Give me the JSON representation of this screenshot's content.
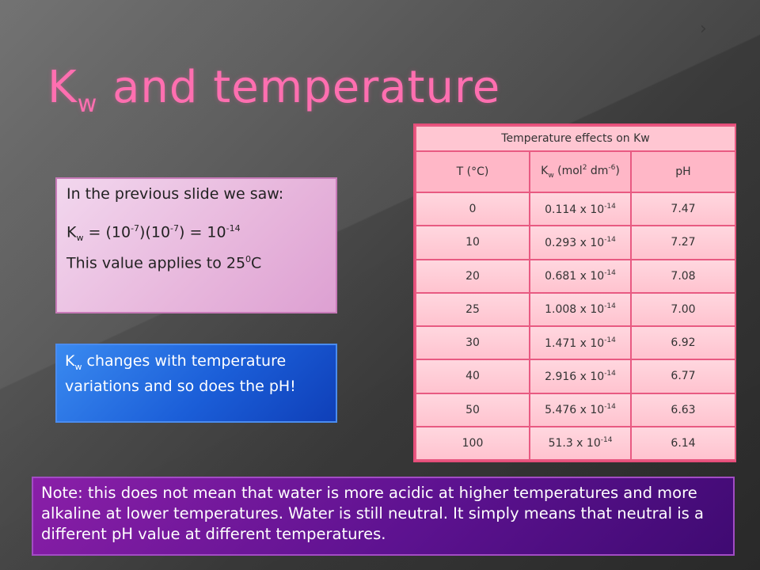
{
  "title": {
    "main": "K",
    "sub": "w",
    "rest": " and temperature"
  },
  "info_box": {
    "line1": "In the previous slide we saw:",
    "eq_k": "K",
    "eq_sub": "w",
    "eq_a": " = (10",
    "eq_exp1": "-7",
    "eq_b": ")(10",
    "eq_exp2": "-7",
    "eq_c": ")  = 10",
    "eq_exp3": "-14",
    "line3_a": "This value applies to 25",
    "line3_sup": "0",
    "line3_b": "C"
  },
  "blue_box": {
    "k": " K",
    "sub": "w",
    "text": " changes with temperature variations and so does the pH!"
  },
  "table": {
    "caption": "Temperature effects on Kw",
    "headers": {
      "t": "T (°C)",
      "kw_main": "K",
      "kw_sub": "w",
      "kw_rest": " (mol",
      "kw_sup1": "2",
      "kw_rest2": " dm",
      "kw_sup2": "-6",
      "kw_end": ")",
      "ph": "pH"
    },
    "exp": "-14",
    "rows": [
      {
        "t": "0",
        "kw": "0.114 x 10",
        "ph": "7.47"
      },
      {
        "t": "10",
        "kw": "0.293 x 10",
        "ph": "7.27"
      },
      {
        "t": "20",
        "kw": "0.681 x 10",
        "ph": "7.08"
      },
      {
        "t": "25",
        "kw": "1.008 x 10",
        "ph": "7.00"
      },
      {
        "t": "30",
        "kw": "1.471 x 10",
        "ph": "6.92"
      },
      {
        "t": "40",
        "kw": "2.916 x 10",
        "ph": "6.77"
      },
      {
        "t": "50",
        "kw": "5.476 x 10",
        "ph": "6.63"
      },
      {
        "t": "100",
        "kw": "51.3 x 10",
        "ph": "6.14"
      }
    ]
  },
  "note": "Note: this does not mean that water is more acidic at higher temperatures and more alkaline at lower temperatures. Water is still neutral. It simply means that neutral is a different pH value at different temperatures."
}
